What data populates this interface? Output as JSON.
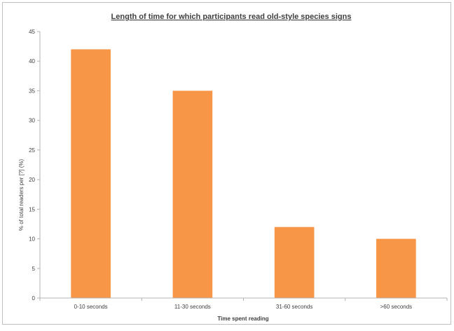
{
  "chart_data": {
    "type": "bar",
    "title": "Length of time for which participants read old-style species signs",
    "xlabel": "Time spent reading",
    "ylabel": "% of total readers per [?] (%)",
    "categories": [
      "0-10 seconds",
      "11-30 seconds",
      "31-60 seconds",
      ">60 seconds"
    ],
    "values": [
      42,
      35,
      12,
      10
    ],
    "ylim": [
      0,
      45
    ],
    "yticks": [
      0,
      5,
      10,
      15,
      20,
      25,
      30,
      35,
      40,
      45
    ],
    "grid": false,
    "legend": "none",
    "colors": {
      "bar": "#f79646",
      "axis": "#b3b3b3",
      "text": "#404040",
      "border": "#bfbfbf"
    }
  }
}
